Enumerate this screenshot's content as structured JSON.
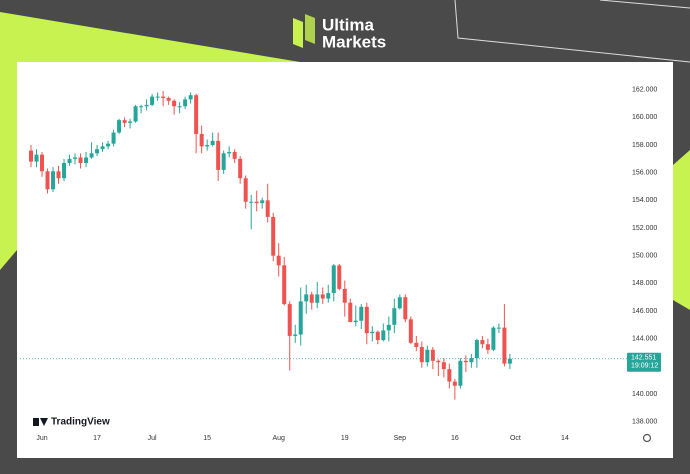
{
  "brand": {
    "line1": "Ultima",
    "line2": "Markets"
  },
  "chart_data": {
    "type": "candlestick",
    "watermark": "TradingView",
    "up_color": "#26a69a",
    "down_color": "#ef5350",
    "x": [
      0,
      1,
      2,
      3,
      4,
      5,
      6,
      7,
      8,
      9,
      10,
      11,
      12,
      13,
      14,
      15,
      16,
      17,
      18,
      19,
      20,
      21,
      22,
      23,
      24,
      25,
      26,
      27,
      28,
      29,
      30,
      31,
      32,
      33,
      34,
      35,
      36,
      37,
      38,
      39,
      40,
      41,
      42,
      43,
      44,
      45,
      46,
      47,
      48,
      49,
      50,
      51,
      52,
      53,
      54,
      55,
      56,
      57,
      58,
      59,
      60,
      61,
      62,
      63,
      64,
      65,
      66,
      67,
      68,
      69,
      70,
      71,
      72,
      73,
      74,
      75,
      76,
      77,
      78,
      79,
      80,
      81,
      82,
      83,
      84,
      85,
      86,
      87
    ],
    "open": [
      157.6,
      156.8,
      157.3,
      156.1,
      154.8,
      156.1,
      155.6,
      156.7,
      157.0,
      157.1,
      156.7,
      157.1,
      157.4,
      157.7,
      157.9,
      158.1,
      158.9,
      159.8,
      159.6,
      159.7,
      160.8,
      160.8,
      160.9,
      161.5,
      161.5,
      161.4,
      161.2,
      160.8,
      160.8,
      161.3,
      161.6,
      158.8,
      157.9,
      158.0,
      158.3,
      156.2,
      157.4,
      157.5,
      157.0,
      155.6,
      153.9,
      153.9,
      153.8,
      154.0,
      152.8,
      150.0,
      149.3,
      146.5,
      144.2,
      144.3,
      146.7,
      147.2,
      146.6,
      147.2,
      146.9,
      147.3,
      149.3,
      147.6,
      146.6,
      145.2,
      145.3,
      146.3,
      144.4,
      144.5,
      143.9,
      144.6,
      145.0,
      146.2,
      147.0,
      145.4,
      143.7,
      143.4,
      142.3,
      143.2,
      142.4,
      142.3,
      141.8,
      140.9,
      140.6,
      142.4,
      142.3,
      142.6,
      143.9,
      143.6,
      143.2,
      144.8,
      144.8,
      142.2
    ],
    "high": [
      158.0,
      157.7,
      157.5,
      156.3,
      156.4,
      156.5,
      157.0,
      157.3,
      157.4,
      157.4,
      157.5,
      158.2,
      158.0,
      158.2,
      158.3,
      159.1,
      159.9,
      160.0,
      159.9,
      160.9,
      160.9,
      161.3,
      161.7,
      161.8,
      161.9,
      161.5,
      161.3,
      161.1,
      161.5,
      161.8,
      161.7,
      159.4,
      158.4,
      158.9,
      158.9,
      157.6,
      157.9,
      157.7,
      157.2,
      155.8,
      154.4,
      154.7,
      154.2,
      155.2,
      153.1,
      150.9,
      149.9,
      146.7,
      145.0,
      147.7,
      147.9,
      147.4,
      148.1,
      147.7,
      147.9,
      149.4,
      149.4,
      148.2,
      146.9,
      146.4,
      146.5,
      146.6,
      144.9,
      144.6,
      145.1,
      145.6,
      146.9,
      147.2,
      147.2,
      145.6,
      144.2,
      143.8,
      143.5,
      143.4,
      142.5,
      142.6,
      142.2,
      141.1,
      142.6,
      142.8,
      142.9,
      144.0,
      144.2,
      144.0,
      144.9,
      145.1,
      146.5,
      142.9
    ],
    "low": [
      156.4,
      156.4,
      155.7,
      154.5,
      154.6,
      155.2,
      155.4,
      156.5,
      156.6,
      156.3,
      156.4,
      157.0,
      157.2,
      157.5,
      157.7,
      157.9,
      158.8,
      159.3,
      159.2,
      159.6,
      160.3,
      160.5,
      160.8,
      161.2,
      160.8,
      160.9,
      160.2,
      160.3,
      160.6,
      161.0,
      157.4,
      157.4,
      157.6,
      157.9,
      155.4,
      155.9,
      157.1,
      156.7,
      155.2,
      153.4,
      151.9,
      153.2,
      153.4,
      152.4,
      149.6,
      148.5,
      146.4,
      141.7,
      143.7,
      143.5,
      145.8,
      146.1,
      146.2,
      146.5,
      146.6,
      146.7,
      147.5,
      145.6,
      145.2,
      144.9,
      144.7,
      143.6,
      143.8,
      143.6,
      143.8,
      143.8,
      144.4,
      146.1,
      145.2,
      143.6,
      143.1,
      141.9,
      142.0,
      141.8,
      141.3,
      141.2,
      140.4,
      139.6,
      140.4,
      141.6,
      141.9,
      141.9,
      143.3,
      142.9,
      143.1,
      144.4,
      142.0,
      141.8
    ],
    "close": [
      156.8,
      157.3,
      156.1,
      154.8,
      156.1,
      155.6,
      156.7,
      157.0,
      157.1,
      156.7,
      157.1,
      157.4,
      157.7,
      157.9,
      158.1,
      158.9,
      159.8,
      159.6,
      159.7,
      160.8,
      160.8,
      160.9,
      161.5,
      161.5,
      161.4,
      161.2,
      160.8,
      160.8,
      161.3,
      161.6,
      158.8,
      157.9,
      158.0,
      158.3,
      156.2,
      157.4,
      157.5,
      157.0,
      155.6,
      153.9,
      153.9,
      153.8,
      154.0,
      152.8,
      150.0,
      149.3,
      146.5,
      144.2,
      144.3,
      146.7,
      147.2,
      146.6,
      147.2,
      146.9,
      147.3,
      149.3,
      147.6,
      146.6,
      145.2,
      145.3,
      146.3,
      144.4,
      144.5,
      143.9,
      144.6,
      145.0,
      146.2,
      147.0,
      145.4,
      143.7,
      143.4,
      142.3,
      143.2,
      142.4,
      142.3,
      141.8,
      140.9,
      140.6,
      142.4,
      142.3,
      142.6,
      143.9,
      143.6,
      143.2,
      144.8,
      144.8,
      142.2,
      142.55
    ],
    "last_price": {
      "value": 142.551,
      "label": "142.551"
    },
    "countdown": "19:09:12",
    "xlim": [
      -2,
      107
    ],
    "ylim": [
      137.4,
      164
    ],
    "xticks": [
      {
        "value": 2,
        "label": "Jun"
      },
      {
        "value": 12,
        "label": "17"
      },
      {
        "value": 22,
        "label": "Jul"
      },
      {
        "value": 32,
        "label": "15"
      },
      {
        "value": 45,
        "label": "Aug"
      },
      {
        "value": 57,
        "label": "19"
      },
      {
        "value": 67,
        "label": "Sep"
      },
      {
        "value": 77,
        "label": "16"
      },
      {
        "value": 88,
        "label": "Oct"
      },
      {
        "value": 97,
        "label": "14"
      }
    ],
    "yticks": [
      {
        "value": 138,
        "label": "138.000"
      },
      {
        "value": 140,
        "label": "140.000"
      },
      {
        "value": 142,
        "label": "142.000"
      },
      {
        "value": 144,
        "label": "144.000"
      },
      {
        "value": 146,
        "label": "146.000"
      },
      {
        "value": 148,
        "label": "148.000"
      },
      {
        "value": 150,
        "label": "150.000"
      },
      {
        "value": 152,
        "label": "152.000"
      },
      {
        "value": 154,
        "label": "154.000"
      },
      {
        "value": 156,
        "label": "156.000"
      },
      {
        "value": 158,
        "label": "158.000"
      },
      {
        "value": 160,
        "label": "160.000"
      },
      {
        "value": 162,
        "label": "162.000"
      }
    ],
    "grid": false
  }
}
